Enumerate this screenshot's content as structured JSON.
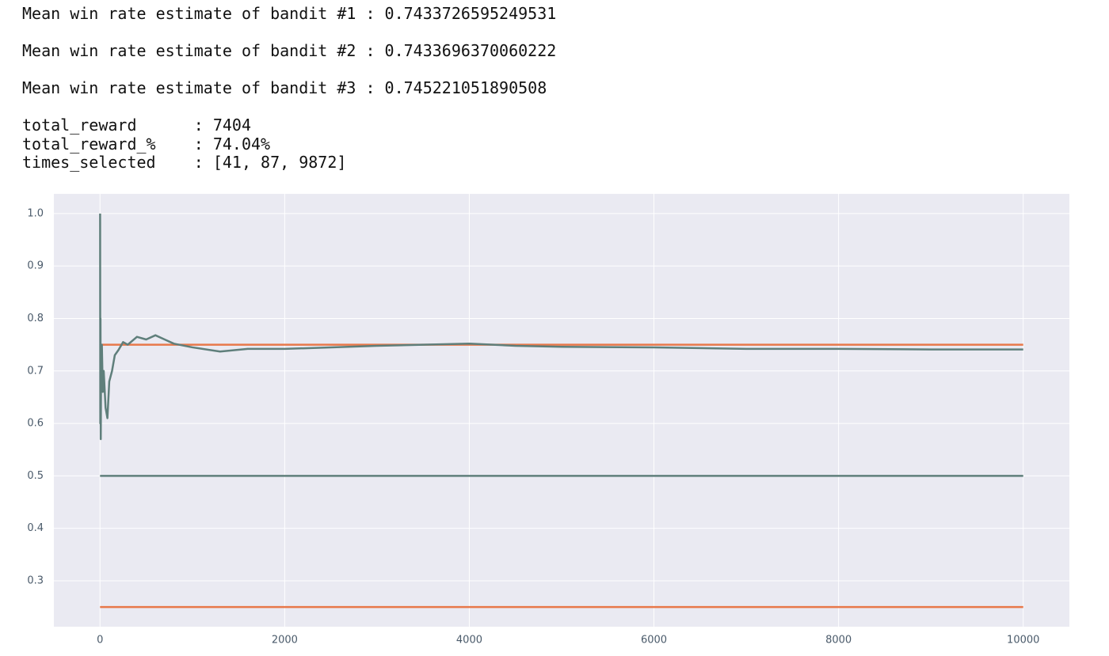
{
  "output": {
    "estimates": [
      "Mean win rate estimate of bandit #1 : 0.7433726595249531",
      "Mean win rate estimate of bandit #2 : 0.7433696370060222",
      "Mean win rate estimate of bandit #3 : 0.745221051890508"
    ],
    "summary": [
      "total_reward      : 7404",
      "total_reward_%    : 74.04%",
      "times_selected    : [41, 87, 9872]"
    ]
  },
  "chart_data": {
    "type": "line",
    "background": "#eaeaf2",
    "grid": true,
    "xlim": [
      -500,
      10500
    ],
    "ylim": [
      0.2125,
      1.0375
    ],
    "xticks": [
      0,
      2000,
      4000,
      6000,
      8000,
      10000
    ],
    "yticks": [
      0.3,
      0.4,
      0.5,
      0.6,
      0.7,
      0.8,
      0.9,
      {
        "value": 1,
        "label": "1.0"
      }
    ],
    "series": [
      {
        "color": "#e8784a",
        "x": [
          0,
          10000
        ],
        "values": [
          0.75,
          0.75
        ]
      },
      {
        "color": "#5f7f7b",
        "x": [
          0,
          10000
        ],
        "values": [
          0.5,
          0.5
        ]
      },
      {
        "color": "#e8784a",
        "x": [
          0,
          10000
        ],
        "values": [
          0.25,
          0.25
        ]
      },
      {
        "color": "#5f7f7b",
        "x": [
          1,
          3,
          5,
          8,
          12,
          20,
          30,
          40,
          60,
          80,
          100,
          130,
          160,
          200,
          250,
          300,
          400,
          500,
          600,
          700,
          800,
          1000,
          1300,
          1600,
          2000,
          2500,
          3000,
          3500,
          4000,
          4500,
          5000,
          6000,
          7000,
          8000,
          9000,
          10000
        ],
        "values": [
          1.0,
          0.6,
          0.8,
          0.57,
          0.73,
          0.75,
          0.66,
          0.7,
          0.63,
          0.61,
          0.68,
          0.7,
          0.73,
          0.74,
          0.755,
          0.75,
          0.765,
          0.76,
          0.768,
          0.76,
          0.752,
          0.745,
          0.737,
          0.742,
          0.742,
          0.745,
          0.748,
          0.75,
          0.752,
          0.748,
          0.746,
          0.745,
          0.742,
          0.742,
          0.741,
          0.741
        ]
      }
    ]
  }
}
